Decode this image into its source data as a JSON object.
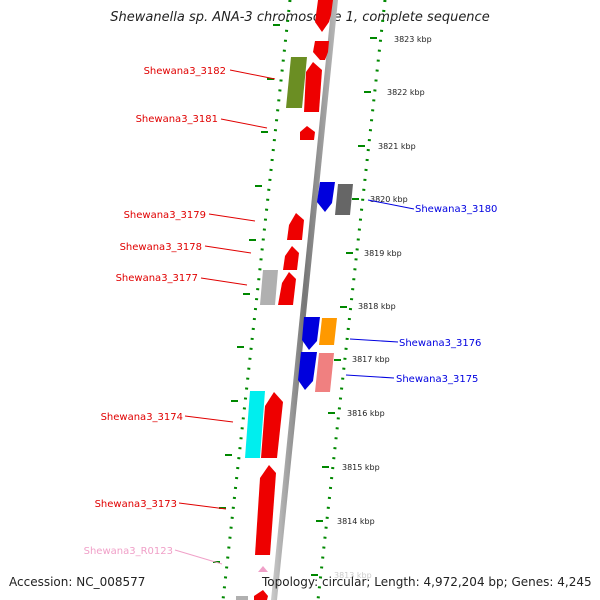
{
  "title": "Shewanella sp. ANA-3 chromosome 1, complete sequence",
  "footer": {
    "accession": "Accession: NC_008577",
    "summary": "Topology: circular; Length: 4,972,204 bp; Genes: 4,245"
  },
  "scale_labels": [
    "3823 kbp",
    "3822 kbp",
    "3821 kbp",
    "3820 kbp",
    "3819 kbp",
    "3818 kbp",
    "3817 kbp",
    "3816 kbp",
    "3815 kbp",
    "3814 kbp",
    "3813 kbp"
  ],
  "gene_labels": [
    {
      "text": "Shewana3_3182",
      "color": "#e00000"
    },
    {
      "text": "Shewana3_3181",
      "color": "#e00000"
    },
    {
      "text": "Shewana3_3180",
      "color": "#0000e0"
    },
    {
      "text": "Shewana3_3179",
      "color": "#e00000"
    },
    {
      "text": "Shewana3_3178",
      "color": "#e00000"
    },
    {
      "text": "Shewana3_3177",
      "color": "#e00000"
    },
    {
      "text": "Shewana3_3176",
      "color": "#0000e0"
    },
    {
      "text": "Shewana3_3175",
      "color": "#0000e0"
    },
    {
      "text": "Shewana3_3174",
      "color": "#e00000"
    },
    {
      "text": "Shewana3_3173",
      "color": "#e00000"
    },
    {
      "text": "Shewana3_R0123",
      "color": "#f0a0c8"
    }
  ],
  "colors": {
    "forward_gene": "#ee0000",
    "reverse_gene": "#0000dd",
    "olive_feature": "#6b8e23",
    "cyan_feature": "#00eeee",
    "orange_feature": "#ff9900",
    "pink_feature": "#f08080",
    "grey_feature": "#a0a0a0",
    "dark_grey_feature": "#666666",
    "rna_feature": "#f0a0c8",
    "tick_color": "#008800",
    "backbone": "#888888"
  }
}
